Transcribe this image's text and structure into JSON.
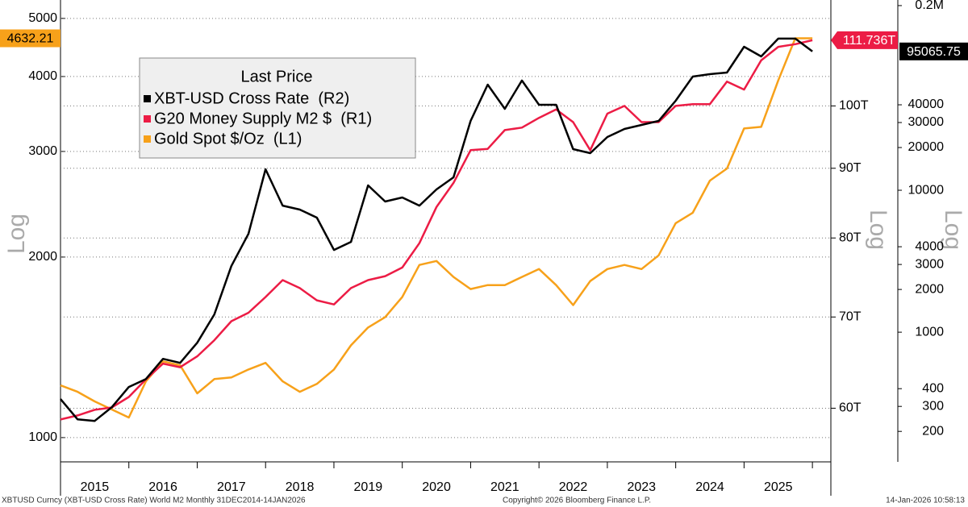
{
  "chart_data": {
    "type": "line",
    "scale": "log",
    "legend_title": "Last Price",
    "y_title": "Log",
    "y2_title": "Log",
    "y3_title": "Log",
    "source": "XBTUSD Curncy (XBT-USD Cross Rate) World M2 Monthly 31DEC2014-14JAN2026",
    "copyright": "Copyright© 2026 Bloomberg Finance L.P.",
    "timestamp": "14-Jan-2026 10:58:13",
    "x": [
      2015.0,
      2015.25,
      2015.5,
      2015.75,
      2016.0,
      2016.25,
      2016.5,
      2016.75,
      2017.0,
      2017.25,
      2017.5,
      2017.75,
      2018.0,
      2018.25,
      2018.5,
      2018.75,
      2019.0,
      2019.25,
      2019.5,
      2019.75,
      2020.0,
      2020.25,
      2020.5,
      2020.75,
      2021.0,
      2021.25,
      2021.5,
      2021.75,
      2022.0,
      2022.25,
      2022.5,
      2022.75,
      2023.0,
      2023.25,
      2023.5,
      2023.75,
      2024.0,
      2024.25,
      2024.5,
      2024.75,
      2025.0,
      2025.25,
      2025.5,
      2025.75,
      2026.0
    ],
    "xlim": [
      2015,
      2026.27
    ],
    "xticks": [
      2015,
      2016,
      2017,
      2018,
      2019,
      2020,
      2021,
      2022,
      2023,
      2024,
      2025,
      2026
    ],
    "xtick_labels": [
      2015,
      2016,
      2017,
      2018,
      2019,
      2020,
      2021,
      2022,
      2023,
      2024,
      2025
    ],
    "ylim": [
      911,
      5366
    ],
    "yticks": [
      1000,
      2000,
      3000,
      4000,
      5000
    ],
    "y2lim": [
      54.8,
      119.6
    ],
    "y2ticks": [
      {
        "value": 60,
        "label": "60T"
      },
      {
        "value": 70,
        "label": "70T"
      },
      {
        "value": 80,
        "label": "80T"
      },
      {
        "value": 90,
        "label": "90T"
      },
      {
        "value": 100,
        "label": "100T"
      }
    ],
    "y3lim": [
      122,
      219000
    ],
    "y3ticks": [
      200,
      300,
      400,
      1000,
      2000,
      3000,
      4000,
      10000,
      20000,
      30000,
      40000,
      {
        "value": 200000,
        "label": "0.2M"
      }
    ],
    "grid": true,
    "series": [
      {
        "name": "XBT-USD Cross Rate  (R2)",
        "color": "#000000",
        "axis": "y3",
        "last_label": "95065.75",
        "values": [
          338,
          243,
          237,
          296,
          411,
          468,
          649,
          608,
          843,
          1334,
          2924,
          4934,
          14050,
          7798,
          7305,
          6410,
          3798,
          4329,
          10820,
          8326,
          8890,
          7798,
          10130,
          12330,
          30800,
          55500,
          37500,
          59270,
          40030,
          40030,
          19490,
          18250,
          23710,
          27030,
          28860,
          30800,
          42720,
          63270,
          65800,
          67520,
          102600,
          87730,
          117000,
          117000,
          95065.75
        ]
      },
      {
        "name": "G20 Money Supply M2 $  (R1)",
        "color": "#ec1c45",
        "axis": "y2",
        "last_label": "111.736T",
        "values": [
          58.87,
          59.27,
          59.84,
          60.08,
          61.15,
          63.0,
          64.7,
          64.3,
          65.5,
          67.3,
          69.5,
          70.5,
          72.4,
          74.5,
          73.5,
          72.0,
          71.5,
          73.5,
          74.5,
          75.0,
          76.1,
          79.3,
          84.3,
          87.8,
          92.8,
          93.0,
          96.0,
          96.4,
          98.0,
          99.4,
          97.3,
          92.8,
          98.7,
          100.0,
          97.3,
          97.3,
          100.0,
          100.3,
          100.3,
          104.2,
          102.8,
          108.0,
          110.5,
          111.0,
          111.736
        ]
      },
      {
        "name": "Gold Spot $/Oz  (L1)",
        "color": "#f7a11a",
        "axis": "y",
        "last_label": "4632.21",
        "values": [
          1222,
          1192,
          1149,
          1114,
          1080,
          1241,
          1340,
          1320,
          1185,
          1252,
          1260,
          1299,
          1332,
          1241,
          1192,
          1229,
          1299,
          1425,
          1526,
          1588,
          1716,
          1940,
          1970,
          1853,
          1769,
          1796,
          1796,
          1853,
          1910,
          1796,
          1663,
          1824,
          1910,
          1940,
          1910,
          2013,
          2278,
          2371,
          2682,
          2809,
          3277,
          3297,
          3942,
          4632.21,
          4632.21
        ]
      }
    ]
  }
}
